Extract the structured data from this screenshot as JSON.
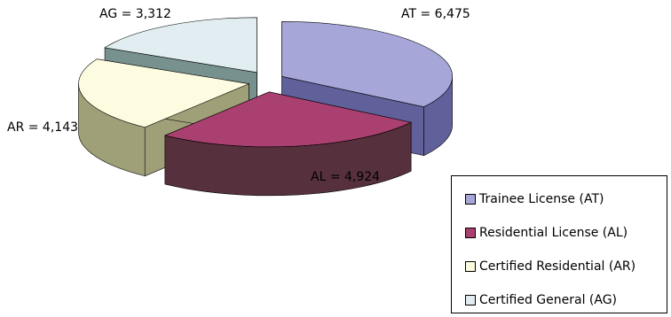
{
  "chart_data": {
    "type": "pie",
    "style": "exploded 3d pie",
    "categories": [
      "Trainee License (AT)",
      "Residential License (AL)",
      "Certified Residential (AR)",
      "Certified General (AG)"
    ],
    "codes": [
      "AT",
      "AL",
      "AR",
      "AG"
    ],
    "values": [
      6475,
      4924,
      4143,
      3312
    ],
    "data_labels": [
      "AT = 6,475",
      "AL = 4,924",
      "AR = 4,143",
      "AG = 3,312"
    ],
    "colors": {
      "top": [
        "#a6a6d9",
        "#aa4070",
        "#fdfce0",
        "#e1edf0"
      ],
      "side": [
        "#60609b",
        "#57303e",
        "#9f9f78",
        "#77918e"
      ]
    },
    "legend_placement": "bottom-right",
    "legend": [
      {
        "label": "Trainee License (AT)",
        "color": "#a6a6d9"
      },
      {
        "label": "Residential License (AL)",
        "color": "#aa4070"
      },
      {
        "label": "Certified Residential (AR)",
        "color": "#fdfce0"
      },
      {
        "label": "Certified General (AG)",
        "color": "#e1edf0"
      }
    ]
  }
}
